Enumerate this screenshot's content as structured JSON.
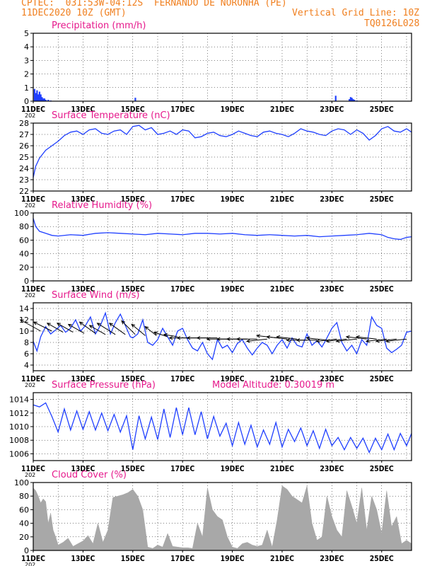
{
  "header": {
    "line1": "CPTEC:  031:53W-04:12S  FERNANDO DE NORONHA (PE)",
    "line2_left": "11DEC2020 10Z (GMT)",
    "line2_right": "Vertical Grid Line: 10Z",
    "line3_right": "TQ0126L028"
  },
  "colors": {
    "header": "#f07f1f",
    "title": "#e6198c",
    "series": "#1f3fff",
    "cloud": "#a8a8a8",
    "vector": "#000000"
  },
  "x_axis": {
    "tick_labels": [
      "11DEC",
      "13DEC",
      "15DEC",
      "17DEC",
      "19DEC",
      "21DEC",
      "23DEC",
      "25DEC"
    ],
    "tick_days": [
      0,
      2,
      4,
      6,
      8,
      10,
      12,
      14
    ],
    "range_days": [
      0,
      15.2
    ],
    "year_fragment": "202"
  },
  "chart_data": [
    {
      "type": "bar",
      "title": "Precipitation (mm/h)",
      "ylim": [
        0,
        5
      ],
      "yticks": [
        0,
        1,
        2,
        3,
        4,
        5
      ],
      "x": [
        0.05,
        0.1,
        0.15,
        0.2,
        0.25,
        0.3,
        0.35,
        0.4,
        0.45,
        0.5,
        0.6,
        0.7,
        4.1,
        12.15,
        12.7,
        12.75,
        12.8,
        12.85,
        12.9,
        13.0
      ],
      "values": [
        0.9,
        0.6,
        0.8,
        0.5,
        0.7,
        0.5,
        0.3,
        0.2,
        0.2,
        0.1,
        0.1,
        0.05,
        0.25,
        0.4,
        0.15,
        0.3,
        0.25,
        0.15,
        0.1,
        0.05
      ]
    },
    {
      "type": "line",
      "title": "Surface Temperature (nC)",
      "ylim": [
        22,
        28
      ],
      "yticks": [
        22,
        23,
        24,
        25,
        26,
        27,
        28
      ],
      "x": [
        0,
        0.1,
        0.25,
        0.5,
        0.75,
        1.0,
        1.25,
        1.5,
        1.75,
        2.0,
        2.25,
        2.5,
        2.75,
        3.0,
        3.25,
        3.5,
        3.75,
        4.0,
        4.25,
        4.5,
        4.75,
        5.0,
        5.25,
        5.5,
        5.75,
        6.0,
        6.25,
        6.5,
        6.75,
        7.0,
        7.25,
        7.5,
        7.75,
        8.0,
        8.25,
        8.5,
        8.75,
        9.0,
        9.25,
        9.5,
        9.75,
        10.0,
        10.25,
        10.5,
        10.75,
        11.0,
        11.25,
        11.5,
        11.75,
        12.0,
        12.25,
        12.5,
        12.75,
        13.0,
        13.25,
        13.5,
        13.75,
        14.0,
        14.25,
        14.5,
        14.75,
        15.0,
        15.2
      ],
      "values": [
        23.2,
        24.2,
        24.9,
        25.6,
        26.0,
        26.4,
        26.9,
        27.2,
        27.3,
        27.0,
        27.4,
        27.5,
        27.1,
        27.0,
        27.3,
        27.4,
        27.0,
        27.7,
        27.8,
        27.4,
        27.6,
        27.0,
        27.1,
        27.3,
        27.0,
        27.4,
        27.3,
        26.7,
        26.8,
        27.1,
        27.2,
        26.9,
        26.8,
        27.0,
        27.3,
        27.1,
        26.9,
        26.8,
        27.2,
        27.3,
        27.1,
        27.0,
        26.8,
        27.1,
        27.5,
        27.3,
        27.2,
        27.0,
        26.9,
        27.3,
        27.5,
        27.4,
        27.0,
        27.4,
        27.1,
        26.5,
        26.9,
        27.5,
        27.7,
        27.3,
        27.2,
        27.5,
        27.2
      ]
    },
    {
      "type": "line",
      "title": "Relative Humidity (%)",
      "ylim": [
        0,
        100
      ],
      "yticks": [
        0,
        20,
        40,
        60,
        80,
        100
      ],
      "x": [
        0,
        0.1,
        0.25,
        0.5,
        0.75,
        1.0,
        1.5,
        2.0,
        2.5,
        3.0,
        3.5,
        4.0,
        4.5,
        5.0,
        5.5,
        6.0,
        6.5,
        7.0,
        7.5,
        8.0,
        8.5,
        9.0,
        9.5,
        10.0,
        10.5,
        11.0,
        11.5,
        12.0,
        12.5,
        13.0,
        13.5,
        14.0,
        14.25,
        14.5,
        14.75,
        15.0,
        15.2
      ],
      "values": [
        92,
        80,
        73,
        70,
        67,
        66,
        68,
        67,
        70,
        71,
        70,
        69,
        68,
        70,
        69,
        68,
        70,
        70,
        69,
        70,
        68,
        67,
        68,
        67,
        66,
        67,
        65,
        66,
        67,
        68,
        70,
        68,
        64,
        62,
        61,
        64,
        65
      ]
    },
    {
      "type": "line",
      "title": "Surface Wind (m/s)",
      "ylim": [
        3,
        15
      ],
      "yticks": [
        4,
        6,
        8,
        10,
        12,
        14
      ],
      "x": [
        0,
        0.15,
        0.3,
        0.5,
        0.7,
        0.9,
        1.1,
        1.3,
        1.5,
        1.7,
        1.9,
        2.1,
        2.3,
        2.5,
        2.7,
        2.9,
        3.1,
        3.3,
        3.5,
        3.7,
        3.9,
        4.0,
        4.2,
        4.4,
        4.6,
        4.8,
        5.0,
        5.2,
        5.4,
        5.6,
        5.8,
        6.0,
        6.2,
        6.4,
        6.6,
        6.8,
        7.0,
        7.2,
        7.4,
        7.6,
        7.8,
        8.0,
        8.2,
        8.4,
        8.6,
        8.8,
        9.0,
        9.2,
        9.4,
        9.6,
        9.8,
        10.0,
        10.2,
        10.4,
        10.6,
        10.8,
        11.0,
        11.2,
        11.4,
        11.6,
        11.8,
        12.0,
        12.2,
        12.4,
        12.6,
        12.8,
        13.0,
        13.2,
        13.4,
        13.6,
        13.8,
        14.0,
        14.2,
        14.4,
        14.6,
        14.8,
        15.0,
        15.2
      ],
      "values": [
        8.2,
        6.5,
        9.0,
        10.8,
        9.5,
        10.2,
        11.0,
        9.8,
        10.5,
        12.0,
        10.0,
        11.0,
        12.5,
        9.5,
        11.0,
        13.2,
        9.5,
        11.5,
        13.0,
        11.0,
        9.0,
        8.8,
        9.5,
        12.0,
        8.0,
        7.5,
        8.5,
        10.5,
        9.0,
        7.5,
        10.0,
        10.5,
        8.5,
        7.0,
        6.5,
        8.0,
        6.0,
        5.0,
        8.5,
        7.0,
        7.5,
        6.2,
        7.8,
        8.5,
        7.0,
        5.8,
        7.0,
        8.0,
        7.5,
        6.0,
        7.5,
        8.5,
        7.0,
        8.8,
        7.5,
        7.2,
        9.5,
        7.5,
        8.3,
        7.2,
        8.8,
        10.5,
        11.5,
        8.0,
        6.5,
        7.5,
        6.0,
        8.5,
        7.5,
        12.5,
        11.0,
        10.5,
        7.0,
        6.2,
        6.8,
        7.5,
        9.8,
        10.0
      ]
    },
    {
      "type": "line",
      "title": "Surface Pressure (hPa)",
      "annotation": "Model Altitude: 0.30019 m",
      "ylim": [
        1005,
        1015
      ],
      "yticks": [
        1006,
        1008,
        1010,
        1012,
        1014
      ],
      "x": [
        0,
        0.25,
        0.5,
        0.75,
        1.0,
        1.25,
        1.5,
        1.75,
        2.0,
        2.25,
        2.5,
        2.75,
        3.0,
        3.25,
        3.5,
        3.75,
        4.0,
        4.25,
        4.5,
        4.75,
        5.0,
        5.25,
        5.5,
        5.75,
        6.0,
        6.25,
        6.5,
        6.75,
        7.0,
        7.25,
        7.5,
        7.75,
        8.0,
        8.25,
        8.5,
        8.75,
        9.0,
        9.25,
        9.5,
        9.75,
        10.0,
        10.25,
        10.5,
        10.75,
        11.0,
        11.25,
        11.5,
        11.75,
        12.0,
        12.25,
        12.5,
        12.75,
        13.0,
        13.25,
        13.5,
        13.75,
        14.0,
        14.25,
        14.5,
        14.75,
        15.0,
        15.2
      ],
      "values": [
        1013.2,
        1012.9,
        1013.5,
        1011.5,
        1009.2,
        1012.6,
        1009.5,
        1012.3,
        1009.6,
        1012.2,
        1009.5,
        1012.0,
        1009.4,
        1011.8,
        1009.2,
        1011.6,
        1006.6,
        1011.6,
        1008.2,
        1011.4,
        1008.1,
        1012.6,
        1008.4,
        1012.8,
        1008.8,
        1012.8,
        1008.8,
        1012.2,
        1008.2,
        1011.5,
        1008.6,
        1010.5,
        1007.2,
        1010.6,
        1007.4,
        1010.2,
        1007.0,
        1009.5,
        1007.4,
        1010.6,
        1007.0,
        1009.6,
        1007.8,
        1009.8,
        1007.2,
        1009.4,
        1006.8,
        1009.6,
        1007.2,
        1008.4,
        1006.6,
        1008.4,
        1006.8,
        1008.3,
        1006.2,
        1008.3,
        1006.6,
        1008.9,
        1006.6,
        1009.0,
        1007.2,
        1009.0
      ]
    },
    {
      "type": "area",
      "title": "Cloud Cover (%)",
      "ylim": [
        0,
        100
      ],
      "yticks": [
        0,
        20,
        40,
        60,
        80,
        100
      ],
      "x": [
        0,
        0.1,
        0.2,
        0.3,
        0.4,
        0.5,
        0.6,
        0.7,
        0.8,
        0.9,
        1.0,
        1.2,
        1.4,
        1.6,
        1.8,
        2.0,
        2.2,
        2.4,
        2.6,
        2.8,
        3.0,
        3.2,
        3.4,
        3.6,
        3.8,
        4.0,
        4.2,
        4.4,
        4.6,
        4.8,
        5.0,
        5.2,
        5.4,
        5.6,
        5.8,
        6.0,
        6.2,
        6.4,
        6.6,
        6.8,
        7.0,
        7.2,
        7.4,
        7.6,
        7.8,
        8.0,
        8.2,
        8.4,
        8.6,
        8.8,
        9.0,
        9.2,
        9.4,
        9.6,
        9.8,
        10.0,
        10.2,
        10.4,
        10.6,
        10.8,
        11.0,
        11.2,
        11.4,
        11.6,
        11.8,
        12.0,
        12.2,
        12.4,
        12.6,
        12.8,
        13.0,
        13.2,
        13.4,
        13.6,
        13.8,
        14.0,
        14.2,
        14.4,
        14.6,
        14.8,
        15.0,
        15.2
      ],
      "values": [
        92,
        88,
        80,
        70,
        76,
        72,
        40,
        55,
        30,
        20,
        8,
        12,
        18,
        6,
        10,
        14,
        22,
        10,
        40,
        12,
        30,
        78,
        80,
        82,
        85,
        90,
        80,
        60,
        5,
        3,
        8,
        5,
        25,
        6,
        5,
        4,
        4,
        3,
        40,
        20,
        92,
        60,
        50,
        45,
        20,
        5,
        3,
        10,
        12,
        8,
        6,
        8,
        30,
        5,
        45,
        95,
        90,
        80,
        75,
        70,
        95,
        40,
        15,
        20,
        80,
        50,
        30,
        20,
        88,
        65,
        40,
        92,
        30,
        80,
        60,
        25,
        88,
        35,
        50,
        10,
        15,
        10
      ]
    }
  ],
  "wind_vectors": {
    "x": [
      0.3,
      0.75,
      1.2,
      1.6,
      2.05,
      2.5,
      2.9,
      3.3,
      3.7,
      4.1,
      4.5,
      4.95,
      5.4,
      5.8,
      6.2,
      6.6,
      7.0,
      7.4,
      7.8,
      8.2,
      8.6,
      9.0,
      9.4,
      9.8,
      10.2,
      10.6,
      11.0,
      11.4,
      11.8,
      12.2,
      12.6,
      13.0,
      13.4,
      13.8,
      14.2,
      14.6,
      15.0
    ],
    "y": [
      10.0,
      10.0,
      9.8,
      9.8,
      9.6,
      9.6,
      9.4,
      9.4,
      9.4,
      9.4,
      9.2,
      9.2,
      9.0,
      9.0,
      8.8,
      8.8,
      8.8,
      8.8,
      8.6,
      8.6,
      8.6,
      8.6,
      8.6,
      8.8,
      8.6,
      8.6,
      8.4,
      8.4,
      8.4,
      8.6,
      8.6,
      8.6,
      8.6,
      8.6,
      8.6,
      8.6,
      8.6
    ],
    "u": [
      -9,
      -8,
      -7,
      -7,
      -7,
      -7,
      -7,
      -8,
      -7,
      -6,
      -6,
      -5,
      -6,
      -6,
      -8,
      -9,
      -9,
      -9,
      -9,
      -9,
      -9,
      -9,
      -9,
      -9,
      -9,
      -9,
      -9,
      -9,
      -9,
      -9,
      -9,
      -9,
      -9,
      -9,
      -9,
      -9,
      -9
    ],
    "v": [
      5,
      4,
      4,
      4,
      4,
      5,
      4,
      5,
      5,
      6,
      5,
      4,
      2,
      1,
      0,
      0,
      0,
      0,
      0,
      0,
      0,
      0,
      -1,
      1,
      1,
      1,
      0,
      0,
      1,
      -1,
      -1,
      -1,
      1,
      1,
      -1,
      -1,
      -1
    ]
  }
}
